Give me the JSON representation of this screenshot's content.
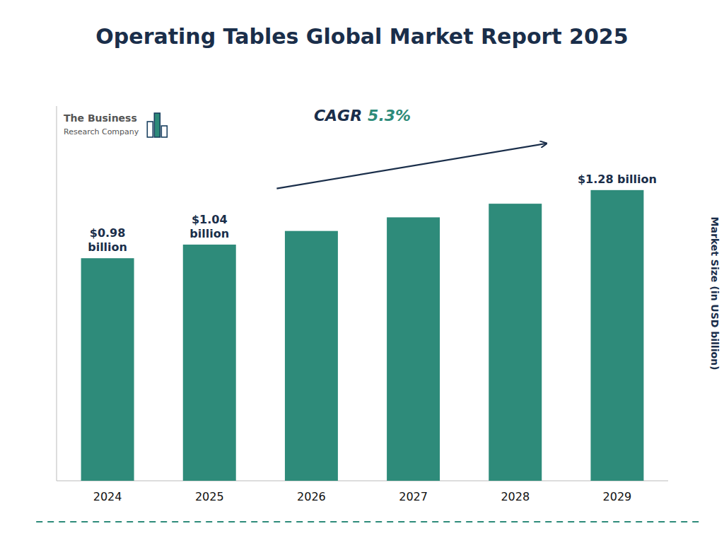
{
  "chart_data": {
    "type": "bar",
    "title": "Operating Tables Global Market Report 2025",
    "categories": [
      "2024",
      "2025",
      "2026",
      "2027",
      "2028",
      "2029"
    ],
    "values": [
      0.98,
      1.04,
      1.1,
      1.16,
      1.22,
      1.28
    ],
    "value_labels": [
      "$0.98\nbillion",
      "$1.04\nbillion",
      null,
      null,
      null,
      "$1.28 billion"
    ],
    "color": "#2E8B7A",
    "ylabel": "Market Size (in USD billion)",
    "ylim": [
      0,
      1.65
    ],
    "yticks": [],
    "tick_labels": "x",
    "grid": false,
    "annotations": [
      "CAGR",
      "5.3%",
      "The Business",
      "Research Company"
    ]
  }
}
